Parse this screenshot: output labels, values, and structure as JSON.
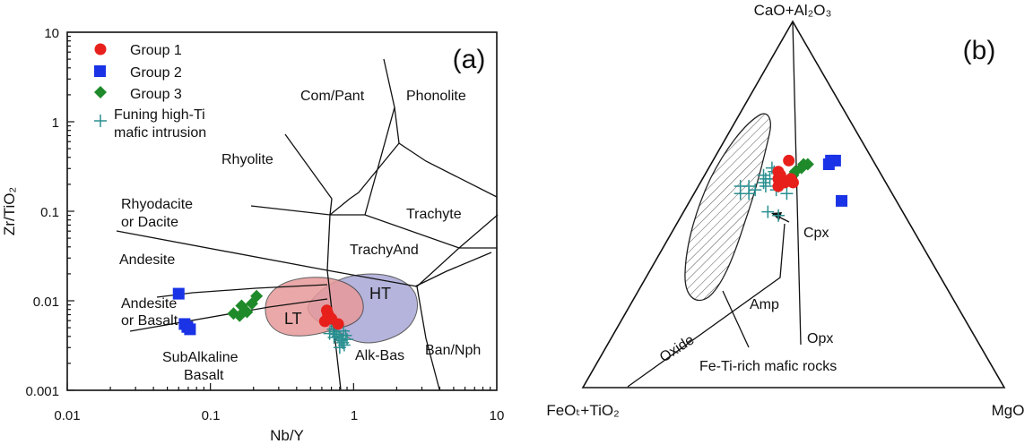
{
  "colors": {
    "group1": "#e8201c",
    "group2": "#1a33e6",
    "group3": "#1f8a2a",
    "funing": "#2a8f90",
    "lt_fill": "#e89a9a",
    "ht_fill": "#a9a7d6"
  },
  "chart_data": [
    {
      "type": "scatter",
      "panel_label": "(a)",
      "xlabel": "Nb/Y",
      "ylabel": "Zr/TiO₂",
      "xscale": "log",
      "yscale": "log",
      "xlim": [
        0.01,
        10
      ],
      "ylim": [
        0.001,
        10
      ],
      "x_ticks": [
        "0.01",
        "0.1",
        "1",
        "10"
      ],
      "y_ticks": [
        "10",
        "1",
        "0.1",
        "0.01",
        "0.001"
      ],
      "legend_position": "top-left",
      "legend": [
        "Group 1",
        "Group 2",
        "Group 3",
        "Funing high-Ti mafic intrusion"
      ],
      "legend_lines": [
        [
          "Group 1"
        ],
        [
          "Group 2"
        ],
        [
          "Group 3"
        ],
        [
          "Funing  high-Ti",
          "mafic intrusion"
        ]
      ],
      "field_labels": [
        {
          "text": "Com/Pant"
        },
        {
          "text": "Phonolite"
        },
        {
          "text": "Rhyolite"
        },
        {
          "text": "Rhyodacite"
        },
        {
          "text": "or Dacite"
        },
        {
          "text": "Trachyte"
        },
        {
          "text": "TrachyAnd"
        },
        {
          "text": "Andesite"
        },
        {
          "text": "Andesite"
        },
        {
          "text": "or Basalt"
        },
        {
          "text": "SubAlkaline"
        },
        {
          "text": "Basalt"
        },
        {
          "text": "Alk-Bas"
        },
        {
          "text": "Ban/Nph"
        },
        {
          "text": "LT"
        },
        {
          "text": "HT"
        }
      ],
      "series": [
        {
          "name": "Group 1",
          "marker": "circle",
          "points": [
            [
              0.65,
              0.0078
            ],
            [
              0.66,
              0.0072
            ],
            [
              0.68,
              0.0066
            ],
            [
              0.63,
              0.0059
            ],
            [
              0.7,
              0.0063
            ],
            [
              0.78,
              0.0055
            ]
          ]
        },
        {
          "name": "Group 2",
          "marker": "square",
          "points": [
            [
              0.06,
              0.012
            ],
            [
              0.066,
              0.0055
            ],
            [
              0.069,
              0.0051
            ],
            [
              0.072,
              0.0048
            ]
          ]
        },
        {
          "name": "Group 3",
          "marker": "diamond",
          "points": [
            [
              0.145,
              0.0072
            ],
            [
              0.16,
              0.0068
            ],
            [
              0.165,
              0.0088
            ],
            [
              0.18,
              0.0075
            ],
            [
              0.195,
              0.0093
            ],
            [
              0.21,
              0.0113
            ]
          ]
        },
        {
          "name": "Funing high-Ti mafic intrusion",
          "marker": "plus",
          "points": [
            [
              0.7,
              0.0055
            ],
            [
              0.72,
              0.0048
            ],
            [
              0.74,
              0.0045
            ],
            [
              0.76,
              0.0042
            ],
            [
              0.78,
              0.004
            ],
            [
              0.8,
              0.0038
            ],
            [
              0.82,
              0.0036
            ],
            [
              0.84,
              0.0034
            ],
            [
              0.86,
              0.0032
            ],
            [
              0.8,
              0.003
            ],
            [
              0.73,
              0.0039
            ],
            [
              0.75,
              0.0052
            ],
            [
              0.85,
              0.0046
            ],
            [
              0.88,
              0.0041
            ],
            [
              0.68,
              0.0043
            ],
            [
              0.9,
              0.0037
            ]
          ]
        }
      ]
    },
    {
      "type": "scatter",
      "subtype": "ternary",
      "panel_label": "(b)",
      "apices": {
        "top": "CaO+Al₂O₃",
        "left": "FeOₜ+TiO₂",
        "right": "MgO"
      },
      "field_labels": [
        {
          "text": "Cpx"
        },
        {
          "text": "Amp"
        },
        {
          "text": "Opx"
        },
        {
          "text": "Oxide"
        },
        {
          "text": "Fe-Ti-rich mafic rocks"
        }
      ],
      "series": [
        {
          "name": "Group 1",
          "marker": "circle",
          "points": [
            [
              0.62,
              0.18
            ],
            [
              0.59,
              0.17
            ],
            [
              0.58,
              0.18
            ],
            [
              0.57,
              0.18
            ],
            [
              0.57,
              0.21
            ],
            [
              0.56,
              0.2
            ],
            [
              0.56,
              0.22
            ],
            [
              0.55,
              0.19
            ]
          ]
        },
        {
          "name": "Group 2",
          "marker": "square",
          "points": [
            [
              0.61,
              0.28
            ],
            [
              0.62,
              0.28
            ],
            [
              0.62,
              0.29
            ],
            [
              0.51,
              0.36
            ]
          ]
        },
        {
          "name": "Group 3",
          "marker": "diamond",
          "points": [
            [
              0.58,
              0.21
            ],
            [
              0.59,
              0.21
            ],
            [
              0.6,
              0.22
            ],
            [
              0.61,
              0.22
            ],
            [
              0.61,
              0.23
            ]
          ]
        },
        {
          "name": "Funing high-Ti mafic intrusion",
          "marker": "plus",
          "points": [
            [
              0.6,
              0.15
            ],
            [
              0.58,
              0.14
            ],
            [
              0.59,
              0.16
            ],
            [
              0.57,
              0.15
            ],
            [
              0.56,
              0.15
            ],
            [
              0.57,
              0.16
            ],
            [
              0.55,
              0.16
            ],
            [
              0.55,
              0.12
            ],
            [
              0.55,
              0.1
            ],
            [
              0.54,
              0.14
            ],
            [
              0.53,
              0.11
            ],
            [
              0.53,
              0.13
            ],
            [
              0.54,
              0.19
            ],
            [
              0.55,
              0.19
            ],
            [
              0.53,
              0.22
            ],
            [
              0.47,
              0.23
            ],
            [
              0.48,
              0.2
            ]
          ]
        }
      ]
    }
  ]
}
